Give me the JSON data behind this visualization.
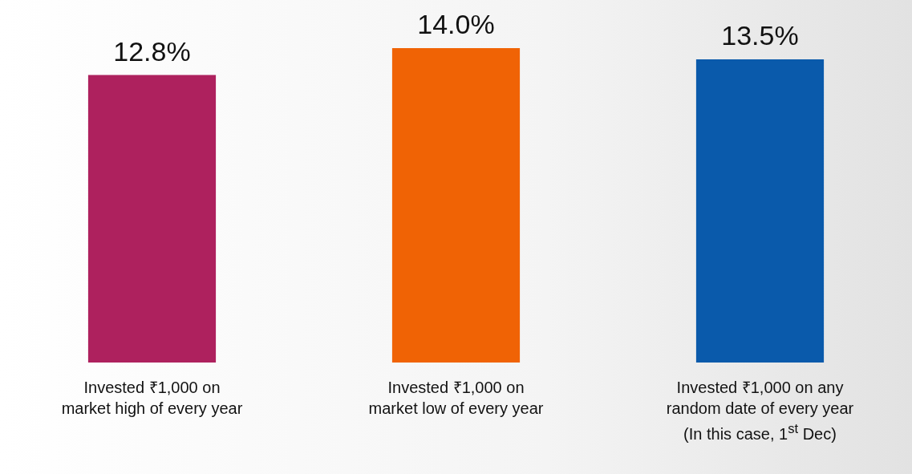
{
  "chart_data": {
    "type": "bar",
    "categories": [
      "Invested ₹1,000 on\nmarket high of every year",
      "Invested ₹1,000 on\nmarket low of every year",
      "Invested ₹1,000 on any\nrandom date of every year\n(In this case, 1$^{st}$ Dec)"
    ],
    "values": [
      12.8,
      14.0,
      13.5
    ],
    "value_labels": [
      "12.8%",
      "14.0%",
      "13.5%"
    ],
    "colors": [
      "#ae215e",
      "#f06305",
      "#0a5aab"
    ]
  }
}
